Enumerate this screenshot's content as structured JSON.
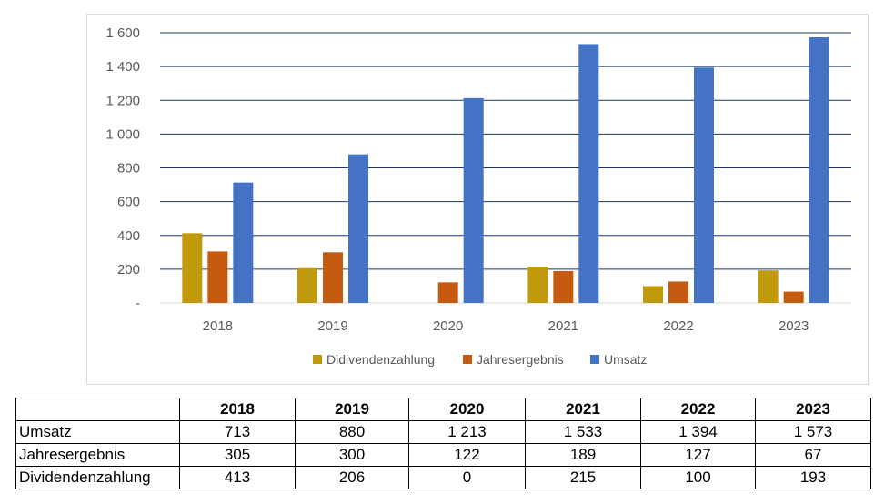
{
  "colors": {
    "Didivendenzahlung": "#c09a0c",
    "Jahresergebnis": "#c55a11",
    "Umsatz": "#4472c4",
    "grid": "#1f3864",
    "axis": "#d9d9d9"
  },
  "chart_data": {
    "type": "bar",
    "categories": [
      "2018",
      "2019",
      "2020",
      "2021",
      "2022",
      "2023"
    ],
    "series": [
      {
        "name": "Didivendenzahlung",
        "values": [
          413,
          206,
          0,
          215,
          100,
          193
        ]
      },
      {
        "name": "Jahresergebnis",
        "values": [
          305,
          300,
          122,
          189,
          127,
          67
        ]
      },
      {
        "name": "Umsatz",
        "values": [
          713,
          880,
          1213,
          1533,
          1394,
          1573
        ]
      }
    ],
    "ylim": [
      0,
      1600
    ],
    "yticks": [
      0,
      200,
      400,
      600,
      800,
      1000,
      1200,
      1400,
      1600
    ],
    "ytick_labels": [
      "-",
      "200",
      "400",
      "600",
      "800",
      "1 000",
      "1 200",
      "1 400",
      "1 600"
    ],
    "title": "",
    "xlabel": "",
    "ylabel": "",
    "legend_position": "bottom",
    "grid": true
  },
  "table": {
    "headers": [
      "",
      "2018",
      "2019",
      "2020",
      "2021",
      "2022",
      "2023"
    ],
    "rows": [
      {
        "label": "Umsatz",
        "cells": [
          "713",
          "880",
          "1 213",
          "1 533",
          "1 394",
          "1 573"
        ]
      },
      {
        "label": "Jahresergebnis",
        "cells": [
          "305",
          "300",
          "122",
          "189",
          "127",
          "67"
        ]
      },
      {
        "label": "Dividendenzahlung",
        "cells": [
          "413",
          "206",
          "0",
          "215",
          "100",
          "193"
        ]
      }
    ]
  }
}
